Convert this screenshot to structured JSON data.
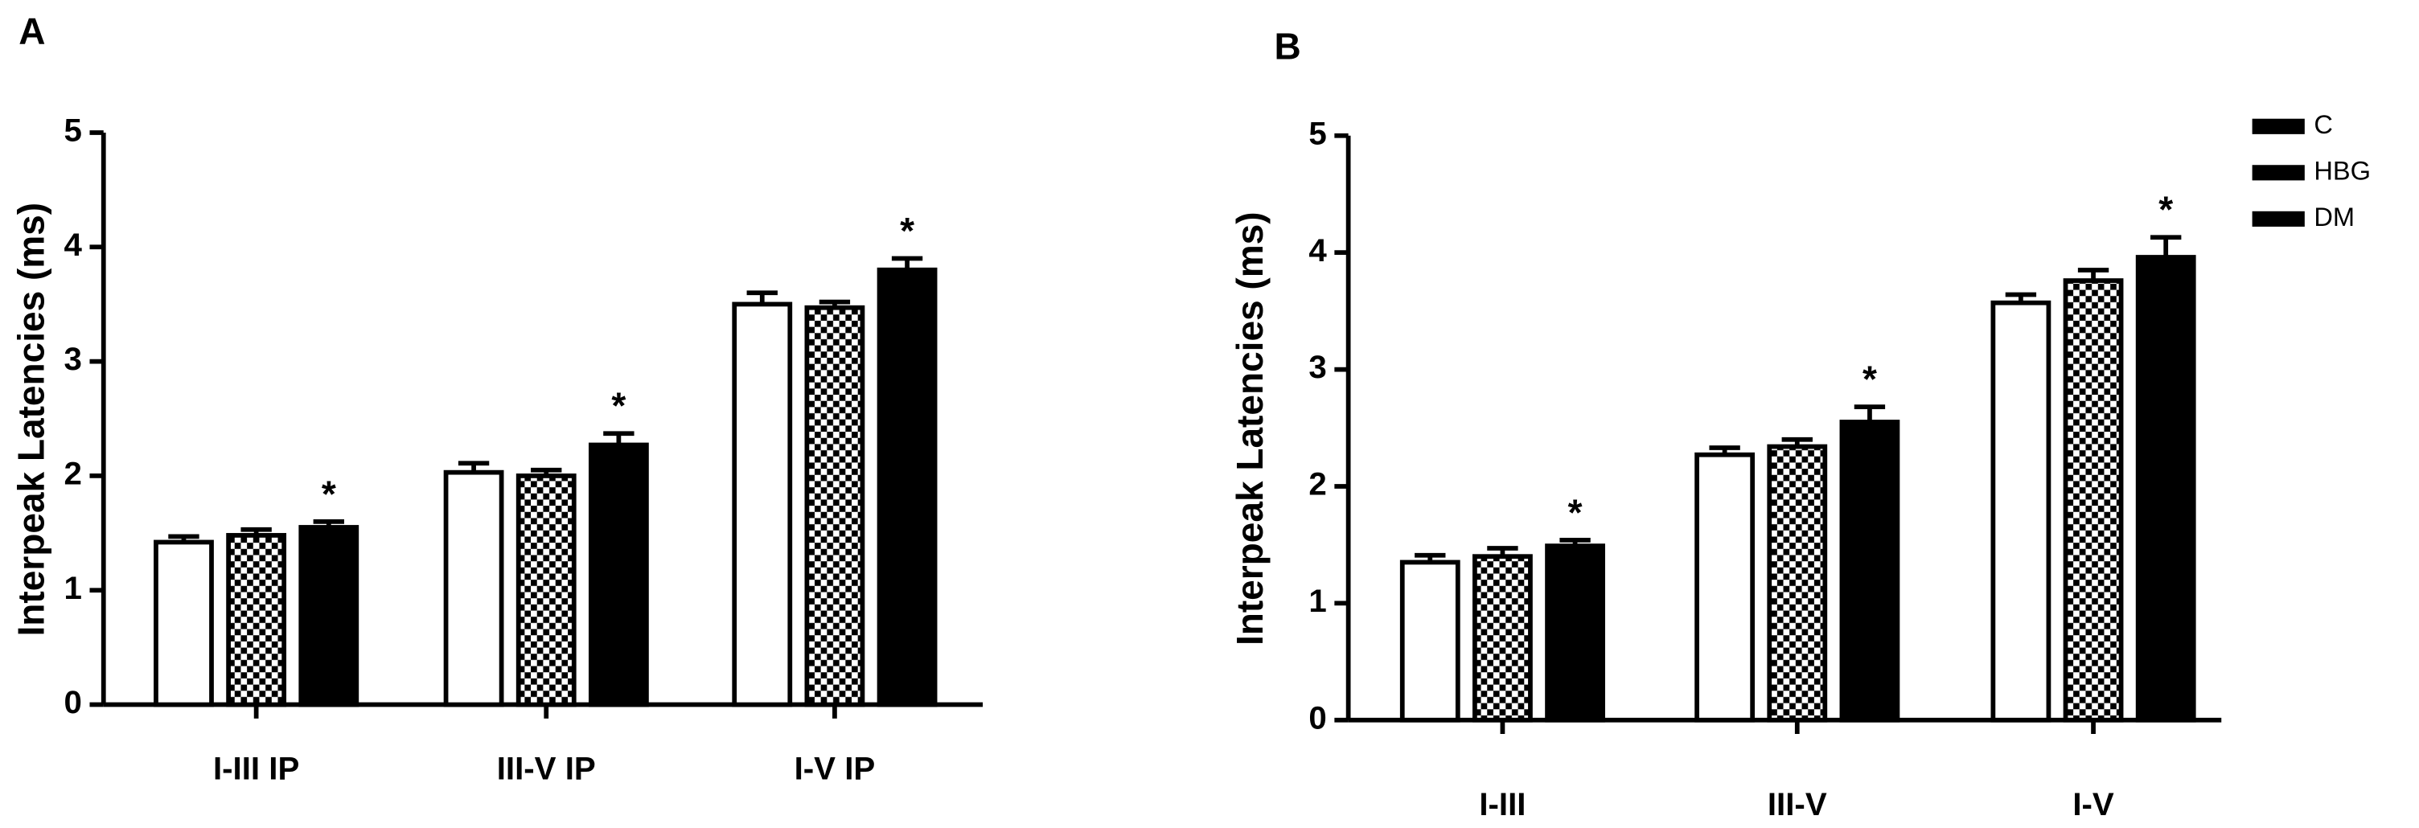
{
  "chart_data": [
    {
      "type": "bar",
      "panel": "A",
      "ylabel": "Interpeak Latencies (ms)",
      "categories": [
        "I-III IP",
        "III-V IP",
        "I-V IP"
      ],
      "series": [
        {
          "name": "C",
          "fill": "white",
          "values": [
            1.42,
            2.03,
            3.5
          ],
          "errors": [
            0.05,
            0.08,
            0.1
          ]
        },
        {
          "name": "HBG",
          "fill": "checker",
          "values": [
            1.48,
            2.0,
            3.47
          ],
          "errors": [
            0.05,
            0.05,
            0.05
          ]
        },
        {
          "name": "DM",
          "fill": "black",
          "values": [
            1.55,
            2.27,
            3.8
          ],
          "errors": [
            0.05,
            0.1,
            0.1
          ],
          "labels": [
            "*",
            "*",
            "*"
          ]
        }
      ],
      "ylim": [
        0,
        5
      ],
      "yticks": [
        0,
        1,
        2,
        3,
        4,
        5
      ],
      "legend": false
    },
    {
      "type": "bar",
      "panel": "B",
      "ylabel": "Interpeak Latencies (ms)",
      "categories": [
        "I-III",
        "III-V",
        "I-V"
      ],
      "series": [
        {
          "name": "C",
          "fill": "white",
          "values": [
            1.35,
            2.27,
            3.57
          ],
          "errors": [
            0.06,
            0.06,
            0.07
          ]
        },
        {
          "name": "HBG",
          "fill": "checker",
          "values": [
            1.4,
            2.34,
            3.76
          ],
          "errors": [
            0.07,
            0.06,
            0.09
          ]
        },
        {
          "name": "DM",
          "fill": "black",
          "values": [
            1.49,
            2.55,
            3.96
          ],
          "errors": [
            0.05,
            0.13,
            0.17
          ],
          "labels": [
            "*",
            "*",
            "*"
          ]
        }
      ],
      "ylim": [
        0,
        5
      ],
      "yticks": [
        0,
        1,
        2,
        3,
        4,
        5
      ],
      "legend": true
    }
  ]
}
